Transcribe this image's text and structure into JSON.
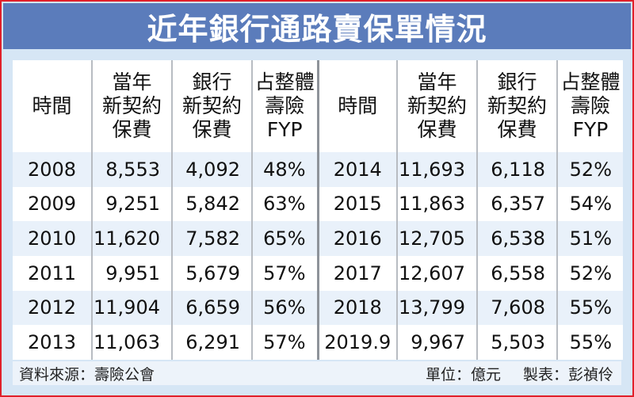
{
  "title": "近年銀行通路賣保單情況",
  "headers": {
    "time": "時間",
    "annual_line1": "當年",
    "annual_line2": "新契約",
    "annual_line3": "保費",
    "bank_line1": "銀行",
    "bank_line2": "新契約",
    "bank_line3": "保費",
    "share_line1": "占整體",
    "share_line2": "壽險",
    "share_line3": "FYP"
  },
  "rows": [
    {
      "l_time": "2008",
      "l_annual": "8,553",
      "l_bank": "4,092",
      "l_share": "48%",
      "r_time": "2014",
      "r_annual": "11,693",
      "r_bank": "6,118",
      "r_share": "52%"
    },
    {
      "l_time": "2009",
      "l_annual": "9,251",
      "l_bank": "5,842",
      "l_share": "63%",
      "r_time": "2015",
      "r_annual": "11,863",
      "r_bank": "6,357",
      "r_share": "54%"
    },
    {
      "l_time": "2010",
      "l_annual": "11,620",
      "l_bank": "7,582",
      "l_share": "65%",
      "r_time": "2016",
      "r_annual": "12,705",
      "r_bank": "6,538",
      "r_share": "51%"
    },
    {
      "l_time": "2011",
      "l_annual": "9,951",
      "l_bank": "5,679",
      "l_share": "57%",
      "r_time": "2017",
      "r_annual": "12,607",
      "r_bank": "6,558",
      "r_share": "52%"
    },
    {
      "l_time": "2012",
      "l_annual": "11,904",
      "l_bank": "6,659",
      "l_share": "56%",
      "r_time": "2018",
      "r_annual": "13,799",
      "r_bank": "7,608",
      "r_share": "55%"
    },
    {
      "l_time": "2013",
      "l_annual": "11,063",
      "l_bank": "6,291",
      "l_share": "57%",
      "r_time": "2019.9",
      "r_annual": "9,967",
      "r_bank": "5,503",
      "r_share": "55%"
    }
  ],
  "footer": {
    "source": "資料來源：壽險公會",
    "unit": "單位：億元",
    "author": "製表：彭禎伶"
  },
  "colors": {
    "title_bg": "#5b7cbb",
    "frame_border": "#e0202a",
    "frame_bg": "#d6e6f5",
    "row_alt": "#e9f1fa"
  }
}
